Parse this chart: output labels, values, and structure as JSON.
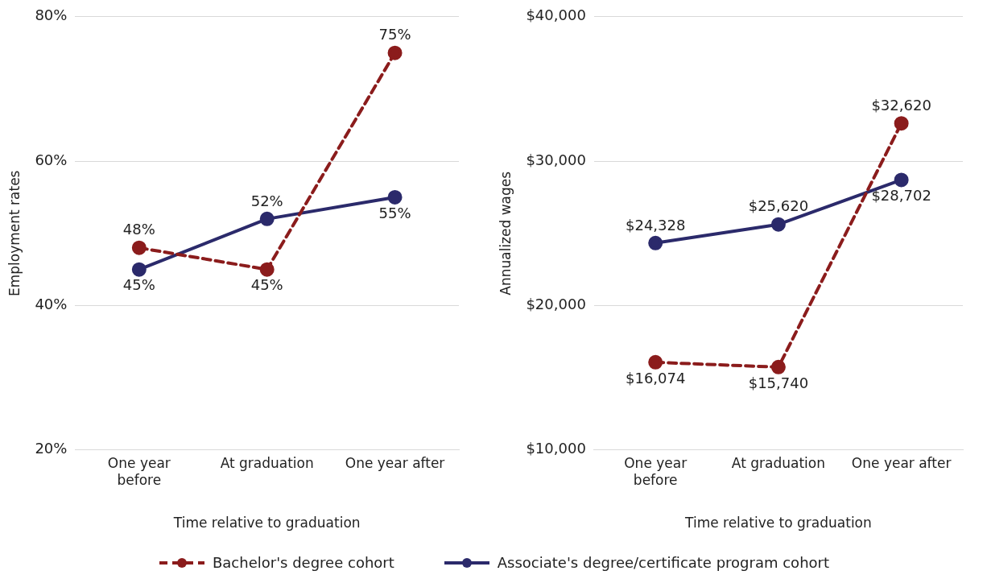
{
  "chart_data": [
    {
      "type": "line",
      "xlabel": "Time relative to graduation",
      "ylabel": "Employment rates",
      "categories": [
        "One year before",
        "At graduation",
        "One year after"
      ],
      "ylim": [
        20,
        80
      ],
      "yticks": [
        {
          "value": 20,
          "label": "20%"
        },
        {
          "value": 40,
          "label": "40%"
        },
        {
          "value": 60,
          "label": "60%"
        },
        {
          "value": 80,
          "label": "80%"
        }
      ],
      "grid": "y",
      "legend": "bottom",
      "marker": "circle",
      "series": [
        {
          "name": "Bachelor's degree cohort",
          "color": "#8b1c1c",
          "line_style": "dashed",
          "values": [
            48,
            45,
            75
          ],
          "value_labels": [
            "48%",
            "45%",
            "75%"
          ]
        },
        {
          "name": "Associate's degree/certificate program cohort",
          "color": "#2b2a6b",
          "line_style": "solid",
          "values": [
            45,
            52,
            55
          ],
          "value_labels": [
            "45%",
            "52%",
            "55%"
          ]
        }
      ]
    },
    {
      "type": "line",
      "xlabel": "Time relative to graduation",
      "ylabel": "Annualized wages",
      "categories": [
        "One year before",
        "At graduation",
        "One year after"
      ],
      "ylim": [
        10000,
        40000
      ],
      "yticks": [
        {
          "value": 10000,
          "label": "$10,000"
        },
        {
          "value": 20000,
          "label": "$20,000"
        },
        {
          "value": 30000,
          "label": "$30,000"
        },
        {
          "value": 40000,
          "label": "$40,000"
        }
      ],
      "grid": "y",
      "legend": "bottom",
      "marker": "circle",
      "series": [
        {
          "name": "Bachelor's degree cohort",
          "color": "#8b1c1c",
          "line_style": "dashed",
          "values": [
            16074,
            15740,
            32620
          ],
          "value_labels": [
            "$16,074",
            "$15,740",
            "$32,620"
          ]
        },
        {
          "name": "Associate's degree/certificate program cohort",
          "color": "#2b2a6b",
          "line_style": "solid",
          "values": [
            24328,
            25620,
            28702
          ],
          "value_labels": [
            "$24,328",
            "$25,620",
            "$28,702"
          ]
        }
      ]
    }
  ]
}
